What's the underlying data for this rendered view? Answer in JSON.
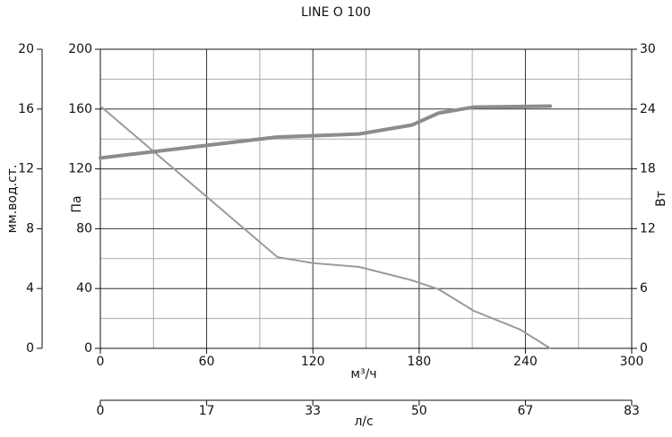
{
  "chart_data": {
    "type": "line",
    "title": "LINE O 100",
    "xlabel": "м³/ч",
    "ylabel": "Па",
    "y2label": "Вт",
    "y3label": "мм.вод.ст.",
    "x2label": "л/с",
    "xlim": [
      0,
      300
    ],
    "xticks": [
      0,
      60,
      120,
      180,
      240,
      300
    ],
    "x_minor_ticks": [
      30,
      90,
      150,
      210,
      270
    ],
    "ylim": [
      0,
      200
    ],
    "yticks": [
      0,
      40,
      80,
      120,
      160,
      200
    ],
    "y_minor_ticks": [
      20,
      60,
      100,
      140,
      180
    ],
    "y2lim": [
      0,
      30
    ],
    "y2ticks": [
      0,
      6,
      12,
      18,
      24,
      30
    ],
    "y3lim": [
      0,
      20
    ],
    "y3ticks": [
      0,
      4,
      8,
      12,
      16,
      20
    ],
    "x2lim": [
      0,
      83.33
    ],
    "x2ticks": [
      0,
      {
        "value": 16.67,
        "label": "17"
      },
      {
        "value": 33.33,
        "label": "33"
      },
      50,
      {
        "value": 66.67,
        "label": "67"
      },
      {
        "value": 83.33,
        "label": "83"
      }
    ],
    "grid": true,
    "series": [
      {
        "name": "pressure",
        "color": "#9a9a9a",
        "x": [
          0,
          100,
          120,
          146,
          176,
          191,
          211,
          237,
          254
        ],
        "values": [
          162,
          61,
          57,
          54.5,
          45.5,
          39.5,
          25,
          12.6,
          0
        ]
      },
      {
        "name": "power",
        "color": "#8c8c8c",
        "axis": "y2",
        "x": [
          0,
          100,
          146,
          176,
          191,
          211,
          254
        ],
        "values": [
          19.1,
          21.2,
          21.5,
          22.4,
          23.6,
          24.2,
          24.3
        ]
      }
    ]
  }
}
